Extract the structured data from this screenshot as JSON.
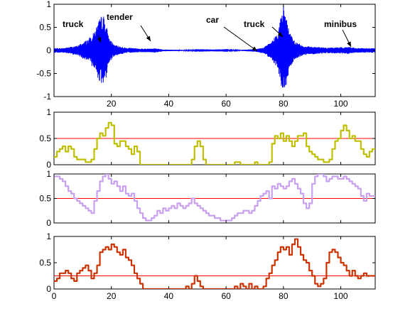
{
  "chart_data": [
    {
      "type": "line",
      "panel": "waveform",
      "xlim": [
        0,
        112
      ],
      "ylim": [
        -1,
        1
      ],
      "xticks": [
        "20",
        "40",
        "60",
        "80",
        "100"
      ],
      "yticks": [
        "1",
        "0.5",
        "0",
        "-0.5",
        "-1"
      ],
      "grid": false,
      "series": [
        {
          "color": "#0000ff",
          "envelope": [
            [
              0,
              0.05
            ],
            [
              3,
              0.05
            ],
            [
              8,
              0.1
            ],
            [
              12,
              0.25
            ],
            [
              14,
              0.4
            ],
            [
              16,
              0.7
            ],
            [
              17,
              0.8
            ],
            [
              18,
              0.65
            ],
            [
              19,
              0.3
            ],
            [
              21,
              0.12
            ],
            [
              25,
              0.06
            ],
            [
              30,
              0.04
            ],
            [
              33,
              0.04
            ],
            [
              35,
              0.05
            ],
            [
              38,
              0.02
            ],
            [
              45,
              0.01
            ],
            [
              55,
              0.005
            ],
            [
              65,
              0.01
            ],
            [
              70,
              0.03
            ],
            [
              73,
              0.06
            ],
            [
              76,
              0.2
            ],
            [
              78,
              0.4
            ],
            [
              79,
              0.7
            ],
            [
              80,
              1.0
            ],
            [
              81,
              0.8
            ],
            [
              82,
              0.4
            ],
            [
              84,
              0.2
            ],
            [
              87,
              0.1
            ],
            [
              95,
              0.06
            ],
            [
              100,
              0.07
            ],
            [
              103,
              0.08
            ],
            [
              105,
              0.05
            ],
            [
              112,
              0.05
            ]
          ]
        }
      ],
      "annotations": [
        {
          "text": "truck",
          "x": 17,
          "y": 0.45
        },
        {
          "text": "tender",
          "x": 34,
          "y": 0.1
        },
        {
          "text": "car",
          "x": 71,
          "y": 0.05
        },
        {
          "text": "truck",
          "x": 79,
          "y": 0.25
        },
        {
          "text": "minibus",
          "x": 104,
          "y": 0.1
        }
      ]
    },
    {
      "type": "line",
      "panel": "score-1",
      "xlim": [
        0,
        112
      ],
      "ylim": [
        0,
        1
      ],
      "xticks": [],
      "yticks": [
        "1",
        "0.5",
        "0"
      ],
      "threshold": {
        "value": 0.5,
        "color": "#ff0000"
      },
      "series": [
        {
          "color": "#bfbf00",
          "x": [
            0,
            1,
            2,
            3,
            4,
            5,
            6,
            7,
            8,
            9,
            10,
            11,
            12,
            13,
            14,
            15,
            16,
            17,
            18,
            19,
            20,
            21,
            22,
            23,
            24,
            25,
            26,
            27,
            28,
            29,
            30,
            35,
            40,
            45,
            47,
            48,
            49,
            50,
            51,
            52,
            53,
            55,
            57,
            59,
            61,
            63,
            65,
            67,
            69,
            70,
            71,
            73,
            74,
            75,
            76,
            77,
            78,
            79,
            80,
            81,
            82,
            83,
            84,
            85,
            86,
            87,
            88,
            89,
            90,
            91,
            92,
            93,
            94,
            95,
            96,
            97,
            98,
            99,
            100,
            101,
            102,
            103,
            104,
            105,
            106,
            107,
            108,
            109,
            110,
            111,
            112
          ],
          "y": [
            0.15,
            0.25,
            0.3,
            0.35,
            0.25,
            0.35,
            0.3,
            0.15,
            0.1,
            0.1,
            0.1,
            0.05,
            0.05,
            0.1,
            0.3,
            0.5,
            0.6,
            0.55,
            0.7,
            0.8,
            0.75,
            0.4,
            0.35,
            0.45,
            0.45,
            0.35,
            0.3,
            0.2,
            0.35,
            0.25,
            0.0,
            0.0,
            0.0,
            0.0,
            0.0,
            0.1,
            0.35,
            0.45,
            0.35,
            0.1,
            0.0,
            0.0,
            0.0,
            0.0,
            0.0,
            0.05,
            0.0,
            0.0,
            0.0,
            0.05,
            0.0,
            0.0,
            0.0,
            0.05,
            0.4,
            0.55,
            0.5,
            0.6,
            0.45,
            0.55,
            0.45,
            0.35,
            0.45,
            0.55,
            0.55,
            0.6,
            0.35,
            0.25,
            0.2,
            0.15,
            0.1,
            0.1,
            0.05,
            0.05,
            0.1,
            0.3,
            0.45,
            0.5,
            0.65,
            0.75,
            0.65,
            0.5,
            0.55,
            0.45,
            0.45,
            0.3,
            0.2,
            0.15,
            0.25,
            0.3,
            0.3
          ]
        }
      ]
    },
    {
      "type": "line",
      "panel": "score-2",
      "xlim": [
        0,
        112
      ],
      "ylim": [
        0,
        1
      ],
      "xticks": [],
      "yticks": [
        "1",
        "0.5",
        "0"
      ],
      "threshold": {
        "value": 0.5,
        "color": "#ff0000"
      },
      "series": [
        {
          "color": "#c9a0f0",
          "x": [
            0,
            1,
            2,
            3,
            4,
            5,
            6,
            7,
            8,
            9,
            10,
            11,
            12,
            13,
            14,
            15,
            16,
            17,
            18,
            19,
            20,
            21,
            22,
            23,
            24,
            25,
            26,
            27,
            28,
            29,
            30,
            31,
            32,
            33,
            34,
            35,
            36,
            37,
            38,
            39,
            40,
            41,
            42,
            43,
            44,
            45,
            46,
            47,
            48,
            49,
            50,
            51,
            52,
            53,
            54,
            55,
            56,
            57,
            58,
            59,
            60,
            61,
            62,
            63,
            64,
            65,
            66,
            67,
            68,
            69,
            70,
            71,
            72,
            73,
            74,
            75,
            76,
            77,
            78,
            79,
            80,
            81,
            82,
            83,
            84,
            85,
            86,
            87,
            88,
            89,
            90,
            91,
            92,
            93,
            94,
            95,
            96,
            97,
            98,
            99,
            100,
            101,
            102,
            103,
            104,
            105,
            106,
            107,
            108,
            109,
            110,
            111,
            112
          ],
          "y": [
            0.95,
            0.95,
            0.9,
            0.85,
            0.75,
            0.65,
            0.6,
            0.5,
            0.45,
            0.4,
            0.35,
            0.3,
            0.25,
            0.2,
            0.45,
            0.65,
            0.85,
            0.95,
            1.0,
            0.9,
            0.8,
            0.85,
            0.75,
            0.65,
            0.75,
            0.6,
            0.55,
            0.6,
            0.45,
            0.3,
            0.2,
            0.1,
            0.05,
            0.05,
            0.1,
            0.15,
            0.25,
            0.2,
            0.3,
            0.25,
            0.3,
            0.35,
            0.3,
            0.4,
            0.35,
            0.3,
            0.35,
            0.4,
            0.5,
            0.4,
            0.35,
            0.3,
            0.25,
            0.2,
            0.15,
            0.15,
            0.1,
            0.1,
            0.05,
            0.05,
            0.05,
            0.05,
            0.1,
            0.15,
            0.2,
            0.2,
            0.25,
            0.25,
            0.2,
            0.25,
            0.35,
            0.45,
            0.55,
            0.6,
            0.65,
            0.5,
            0.75,
            0.7,
            0.8,
            0.75,
            0.7,
            0.75,
            0.85,
            0.9,
            0.8,
            0.7,
            0.6,
            0.4,
            0.3,
            0.4,
            0.8,
            0.95,
            1.0,
            1.0,
            0.95,
            0.85,
            0.9,
            0.95,
            0.95,
            0.9,
            0.9,
            0.95,
            0.9,
            0.85,
            0.8,
            0.75,
            0.7,
            0.55,
            0.45,
            0.6,
            0.55,
            0.55,
            0.55
          ]
        }
      ]
    },
    {
      "type": "line",
      "panel": "score-3",
      "xlim": [
        0,
        112
      ],
      "ylim": [
        0,
        1
      ],
      "xticks": [
        "0",
        "20",
        "40",
        "60",
        "80",
        "100"
      ],
      "yticks": [
        "1",
        "0.5",
        "0"
      ],
      "threshold": {
        "value": 0.25,
        "color": "#ff0000"
      },
      "series": [
        {
          "color": "#cc3300",
          "x": [
            0,
            1,
            2,
            3,
            4,
            5,
            6,
            7,
            8,
            9,
            10,
            11,
            12,
            13,
            14,
            15,
            16,
            17,
            18,
            19,
            20,
            21,
            22,
            23,
            24,
            25,
            26,
            27,
            28,
            29,
            30,
            31,
            32,
            33,
            34,
            35,
            36,
            37,
            38,
            39,
            40,
            41,
            42,
            43,
            44,
            45,
            46,
            47,
            48,
            49,
            50,
            51,
            52,
            53,
            54,
            55,
            56,
            57,
            58,
            59,
            60,
            61,
            62,
            63,
            64,
            65,
            66,
            67,
            68,
            69,
            70,
            71,
            72,
            73,
            74,
            75,
            76,
            77,
            78,
            79,
            80,
            81,
            82,
            83,
            84,
            85,
            86,
            87,
            88,
            89,
            90,
            91,
            92,
            93,
            94,
            95,
            96,
            97,
            98,
            99,
            100,
            101,
            102,
            103,
            104,
            105,
            106,
            107,
            108,
            109,
            110,
            111,
            112
          ],
          "y": [
            0.15,
            0.2,
            0.3,
            0.3,
            0.35,
            0.3,
            0.2,
            0.15,
            0.3,
            0.35,
            0.4,
            0.45,
            0.35,
            0.2,
            0.3,
            0.45,
            0.7,
            0.75,
            0.8,
            0.75,
            0.85,
            0.8,
            0.7,
            0.65,
            0.75,
            0.6,
            0.55,
            0.45,
            0.3,
            0.2,
            0.1,
            0.0,
            0.0,
            0.0,
            0.0,
            0.0,
            0.0,
            0.0,
            0.0,
            0.0,
            0.0,
            0.0,
            0.0,
            0.0,
            0.0,
            0.0,
            0.05,
            0.0,
            0.1,
            0.25,
            0.15,
            0.05,
            0.0,
            0.0,
            0.0,
            0.0,
            0.0,
            0.0,
            0.0,
            0.0,
            0.0,
            0.0,
            0.0,
            0.05,
            0.0,
            0.1,
            0.05,
            0.0,
            0.1,
            0.0,
            0.05,
            0.0,
            0.0,
            0.05,
            0.2,
            0.3,
            0.45,
            0.55,
            0.7,
            0.8,
            0.75,
            0.8,
            0.65,
            0.85,
            0.95,
            0.8,
            0.65,
            0.55,
            0.5,
            0.35,
            0.25,
            0.1,
            0.05,
            0.1,
            0.2,
            0.5,
            0.7,
            0.75,
            0.7,
            0.6,
            0.5,
            0.45,
            0.35,
            0.25,
            0.35,
            0.25,
            0.2,
            0.25,
            0.3,
            0.25,
            0.25,
            0.25,
            0.25
          ]
        }
      ]
    }
  ]
}
